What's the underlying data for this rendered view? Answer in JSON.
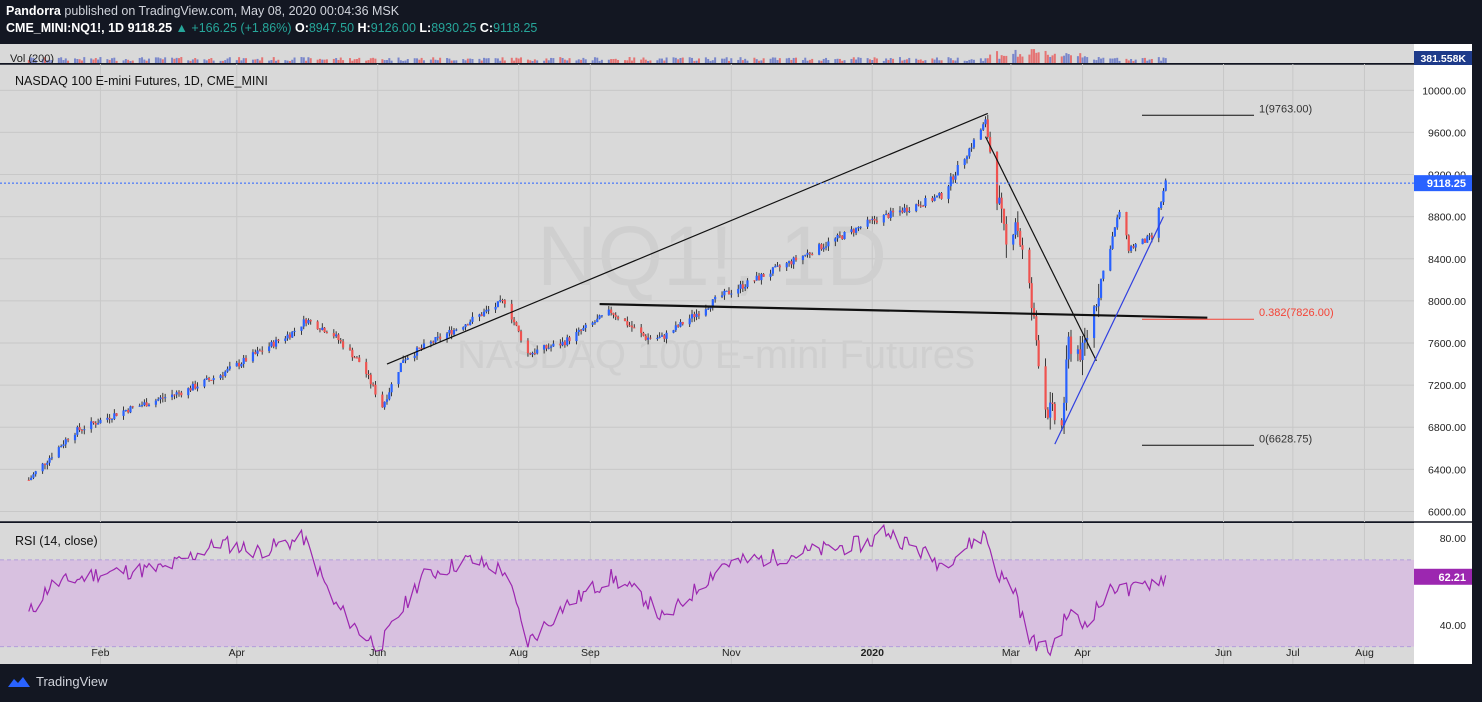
{
  "header": {
    "author": "Pandorra",
    "published": "published on TradingView.com, May 08, 2020 00:04:36 MSK",
    "symbol": "CME_MINI:NQ1!, 1D",
    "last": "9118.25",
    "change": "+166.25 (+1.86%)",
    "open_label": "O:",
    "open": "8947.50",
    "high_label": "H:",
    "high": "9126.00",
    "low_label": "L:",
    "low": "8930.25",
    "close_label": "C:",
    "close": "9118.25"
  },
  "volume": {
    "label": "Vol (200)",
    "value_tag": "381.558K"
  },
  "main": {
    "title": "NASDAQ 100 E-mini Futures, 1D, CME_MINI",
    "watermark_symbol": "NQ1!, 1D",
    "watermark_name": "NASDAQ 100 E-mini Futures",
    "price_tag": "9118.25"
  },
  "rsi": {
    "label": "RSI (14, close)",
    "value_tag": "62.21"
  },
  "footer": {
    "brand": "TradingView"
  },
  "colors": {
    "bg": "#131722",
    "pane": "#d9d9d9",
    "up": "#2962ff",
    "down": "#ef5350",
    "rsi": "#9c27b0",
    "rsi_band": "#d8c1e0",
    "fib_red": "#f44336"
  },
  "chart_data": [
    {
      "type": "candlestick",
      "title": "NASDAQ 100 E-mini Futures, 1D, CME_MINI",
      "ylim": [
        5900,
        10250
      ],
      "yticks": [
        "6000.00",
        "6400.00",
        "6800.00",
        "7200.00",
        "7600.00",
        "8000.00",
        "8400.00",
        "8800.00",
        "9200.00",
        "9600.00",
        "10000.00"
      ],
      "xticks": [
        "Feb",
        "Apr",
        "Jun",
        "Aug",
        "Sep",
        "Nov",
        "2020",
        "Mar",
        "Apr",
        "Jun",
        "Jul",
        "Aug"
      ],
      "close_path": [
        [
          "2019-01-01",
          6300
        ],
        [
          "2019-01-20",
          6750
        ],
        [
          "2019-02-10",
          6950
        ],
        [
          "2019-03-10",
          7150
        ],
        [
          "2019-03-25",
          7300
        ],
        [
          "2019-04-25",
          7700
        ],
        [
          "2019-05-01",
          7820
        ],
        [
          "2019-05-12",
          7700
        ],
        [
          "2019-05-25",
          7400
        ],
        [
          "2019-06-03",
          7000
        ],
        [
          "2019-06-12",
          7450
        ],
        [
          "2019-07-10",
          7800
        ],
        [
          "2019-07-26",
          8000
        ],
        [
          "2019-08-05",
          7500
        ],
        [
          "2019-08-20",
          7600
        ],
        [
          "2019-09-10",
          7900
        ],
        [
          "2019-09-25",
          7650
        ],
        [
          "2019-10-02",
          7650
        ],
        [
          "2019-10-28",
          8050
        ],
        [
          "2019-11-25",
          8350
        ],
        [
          "2019-12-31",
          8750
        ],
        [
          "2020-01-31",
          9000
        ],
        [
          "2020-02-19",
          9700
        ],
        [
          "2020-02-28",
          8500
        ],
        [
          "2020-03-03",
          8800
        ],
        [
          "2020-03-09",
          8100
        ],
        [
          "2020-03-16",
          7000
        ],
        [
          "2020-03-23",
          6800
        ],
        [
          "2020-03-26",
          7600
        ],
        [
          "2020-04-01",
          7500
        ],
        [
          "2020-04-09",
          8200
        ],
        [
          "2020-04-17",
          8850
        ],
        [
          "2020-04-21",
          8500
        ],
        [
          "2020-05-01",
          8600
        ],
        [
          "2020-05-07",
          9118
        ]
      ],
      "fib_levels": [
        {
          "label": "1(9763.00)",
          "value": 9763.0
        },
        {
          "label": "0.382(7826.00)",
          "value": 7826.0
        },
        {
          "label": "0(6628.75)",
          "value": 6628.75
        }
      ],
      "trendlines": [
        {
          "name": "rising-wedge-top",
          "from": [
            "2019-06-05",
            7400
          ],
          "to": [
            "2020-02-20",
            9780
          ]
        },
        {
          "name": "neckline",
          "from": [
            "2019-09-05",
            7970
          ],
          "to": [
            "2020-05-25",
            7840
          ]
        },
        {
          "name": "descending-line",
          "from": [
            "2020-02-19",
            9560
          ],
          "to": [
            "2020-04-07",
            7430
          ]
        },
        {
          "name": "recovery-line",
          "from": [
            "2020-03-20",
            6640
          ],
          "to": [
            "2020-05-06",
            8800
          ]
        }
      ],
      "last_price": 9118.25
    },
    {
      "type": "line",
      "title": "RSI (14, close)",
      "ylim": [
        22,
        87
      ],
      "yticks": [
        "40.00",
        "80.00"
      ],
      "band": [
        30,
        70
      ],
      "path": [
        [
          "2019-01-01",
          45
        ],
        [
          "2019-01-10",
          58
        ],
        [
          "2019-02-01",
          64
        ],
        [
          "2019-03-01",
          66
        ],
        [
          "2019-03-25",
          78
        ],
        [
          "2019-04-10",
          74
        ],
        [
          "2019-04-30",
          80
        ],
        [
          "2019-05-13",
          50
        ],
        [
          "2019-05-25",
          36
        ],
        [
          "2019-06-02",
          30
        ],
        [
          "2019-06-20",
          62
        ],
        [
          "2019-07-10",
          70
        ],
        [
          "2019-07-26",
          65
        ],
        [
          "2019-08-05",
          32
        ],
        [
          "2019-08-20",
          48
        ],
        [
          "2019-09-10",
          62
        ],
        [
          "2019-09-25",
          52
        ],
        [
          "2019-10-03",
          42
        ],
        [
          "2019-10-28",
          68
        ],
        [
          "2019-11-25",
          72
        ],
        [
          "2019-12-31",
          78
        ],
        [
          "2020-01-06",
          84
        ],
        [
          "2020-01-31",
          68
        ],
        [
          "2020-02-19",
          82
        ],
        [
          "2020-02-24",
          64
        ],
        [
          "2020-03-03",
          56
        ],
        [
          "2020-03-08",
          34
        ],
        [
          "2020-03-18",
          28
        ],
        [
          "2020-03-26",
          46
        ],
        [
          "2020-04-01",
          40
        ],
        [
          "2020-04-17",
          60
        ],
        [
          "2020-04-21",
          55
        ],
        [
          "2020-05-01",
          60
        ],
        [
          "2020-05-07",
          62.21
        ]
      ],
      "last_value": 62.21
    }
  ]
}
